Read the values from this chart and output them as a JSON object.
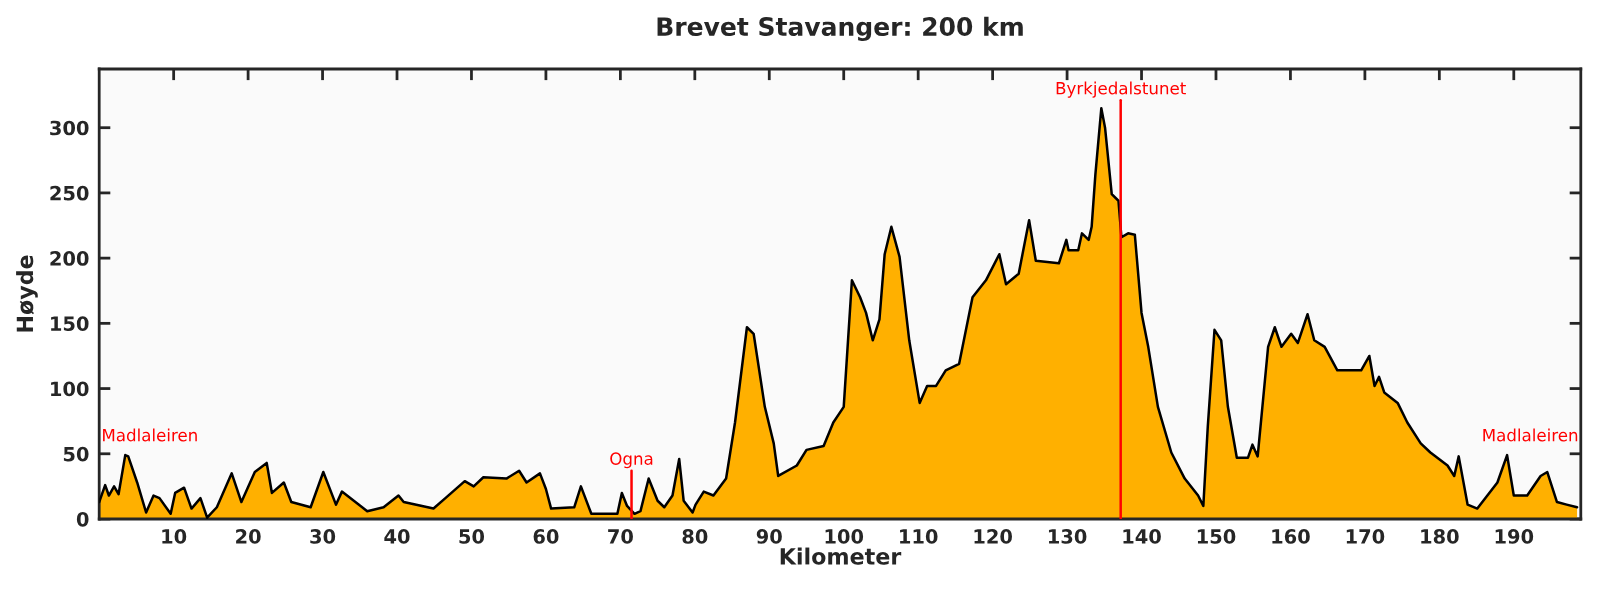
{
  "chart_data": {
    "type": "area",
    "title": "Brevet Stavanger: 200 km",
    "xlabel": "Kilometer",
    "ylabel": "Høyde",
    "xlim": [
      0,
      199
    ],
    "xticks": [
      10,
      20,
      30,
      40,
      50,
      60,
      70,
      80,
      90,
      100,
      110,
      120,
      130,
      140,
      150,
      160,
      170,
      180,
      190
    ],
    "ylim": [
      0,
      345
    ],
    "yticks": [
      0,
      50,
      100,
      150,
      200,
      250,
      300
    ],
    "grid": false,
    "annotations": [
      "Madlaleiren",
      "Madlaleiren"
    ],
    "ref_lines": [
      {
        "axis": "x",
        "value": 71.5,
        "label": "Ogna",
        "color": "#ff0000"
      },
      {
        "axis": "x",
        "value": 137.2,
        "label": "Byrkjedalstunet",
        "color": "#ff0000"
      }
    ],
    "series": [
      {
        "color": "#ffb000",
        "x": [
          0,
          0.8,
          1.3,
          2,
          2.6,
          3.5,
          3.9,
          5.1,
          6.3,
          7.3,
          8.1,
          9.6,
          10.2,
          11.4,
          12.4,
          13.6,
          14.5,
          15.8,
          17.8,
          19.1,
          20.9,
          22.5,
          23.2,
          24.8,
          25.8,
          28.4,
          30.1,
          31.8,
          32.6,
          36,
          38.2,
          40.2,
          40.9,
          44.9,
          46.5,
          49.1,
          50.3,
          51.6,
          54.7,
          56.4,
          57.4,
          59.2,
          60,
          60.7,
          63.8,
          64.7,
          66.1,
          69.6,
          70.2,
          70.9,
          71.9,
          72.7,
          73.8,
          75,
          75.9,
          77,
          77.9,
          78.5,
          79.7,
          80.1,
          81.2,
          82.5,
          84.2,
          85.4,
          87,
          87.9,
          89.4,
          90.6,
          91.2,
          93.7,
          95,
          97.3,
          98.6,
          100,
          101.1,
          102.2,
          103,
          103.9,
          104.8,
          105.5,
          106.4,
          107.5,
          108.8,
          110.2,
          111.2,
          112.4,
          113.7,
          115.5,
          117.3,
          119.1,
          120.9,
          121.8,
          123.5,
          124.9,
          125.8,
          128.9,
          129.9,
          130.2,
          131.5,
          132,
          132.9,
          133.3,
          133.8,
          134.6,
          135.1,
          136,
          136.9,
          137.3,
          138.2,
          139.1,
          140,
          140.9,
          142.2,
          144,
          145.8,
          147.6,
          148.3,
          148.9,
          149.8,
          150.7,
          151.6,
          152.8,
          154.3,
          154.9,
          155.6,
          157,
          157.9,
          158.8,
          160.1,
          161,
          162.3,
          163.2,
          164.6,
          166.3,
          169.5,
          170.6,
          171.3,
          171.9,
          172.6,
          174.4,
          175.7,
          177.5,
          178.8,
          181.1,
          182,
          182.6,
          183.8,
          185.1,
          187.8,
          189.1,
          190,
          191.8,
          193.6,
          194.5,
          195.8,
          197.1,
          198.5
        ],
        "values": [
          13,
          26,
          18,
          25,
          19,
          49,
          48,
          28,
          5,
          18,
          16,
          4,
          20,
          24,
          8,
          16,
          1,
          9,
          35,
          13,
          36,
          43,
          20,
          28,
          13,
          9,
          36,
          11,
          21,
          6,
          9,
          18,
          13,
          8,
          16,
          29,
          25,
          32,
          31,
          37,
          28,
          35,
          23,
          8,
          9,
          25,
          4,
          4,
          20,
          10,
          4,
          6,
          31,
          14,
          9,
          18,
          46,
          14,
          5,
          11,
          21,
          18,
          31,
          74,
          147,
          142,
          86,
          58,
          33,
          41,
          53,
          56,
          74,
          86,
          183,
          170,
          158,
          137,
          153,
          203,
          224,
          201,
          137,
          89,
          102,
          102,
          114,
          119,
          170,
          183,
          203,
          180,
          188,
          229,
          198,
          196,
          214,
          206,
          206,
          219,
          214,
          224,
          264,
          315,
          300,
          249,
          244,
          216,
          219,
          218,
          158,
          132,
          86,
          51,
          31,
          18,
          10,
          71,
          145,
          137,
          86,
          47,
          47,
          57,
          48,
          132,
          147,
          132,
          142,
          135,
          157,
          137,
          132,
          114,
          114,
          125,
          102,
          109,
          97,
          89,
          74,
          58,
          51,
          41,
          33,
          48,
          11,
          8,
          28,
          49,
          18,
          18,
          33,
          36,
          13,
          11,
          9
        ]
      }
    ]
  }
}
